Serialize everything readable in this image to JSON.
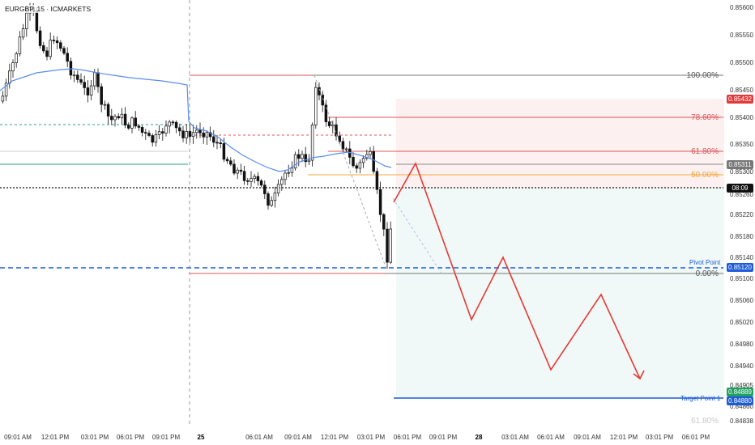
{
  "symbol_title": "EURGBP, 15 · ICMARKETS",
  "price_axis": {
    "ticks": [
      "0.85600",
      "0.85550",
      "0.85500",
      "0.85450",
      "0.85400",
      "0.85350",
      "0.85300",
      "0.85260",
      "0.85220",
      "0.85180",
      "0.85140",
      "0.85100",
      "0.85060",
      "0.85020",
      "0.84980",
      "0.84940",
      "0.84905",
      "0.84860",
      "0.84838"
    ],
    "tags": {
      "upper_red": "0.85432",
      "fifty": "0.85311",
      "countdown": "08:09",
      "pivot": "0.85120",
      "target": "0.84889",
      "target_sub": "0.84880"
    }
  },
  "time_axis": [
    "09:01 AM",
    "12:01 PM",
    "03:01 PM",
    "06:01 PM",
    "09:01 PM",
    "25",
    "06:01 AM",
    "09:01 AM",
    "12:01 PM",
    "03:01 PM",
    "06:01 PM",
    "09:01 PM",
    "28",
    "03:01 AM",
    "06:01 AM",
    "09:01 AM",
    "12:01 PM",
    "03:01 PM",
    "06:01 PM"
  ],
  "fib_levels": {
    "l100": "100.00%",
    "l786": "78.60%",
    "l618": "61.80%",
    "l50": "50.00%",
    "l0": "0.00%",
    "lneg": "61.80%"
  },
  "annotations": {
    "pivot": "Pivot Point",
    "target": "Target Point 1"
  },
  "colors": {
    "down_candle": "#111111",
    "up_candle": "#ffffff",
    "ma": "#5b8def",
    "projection": "#e53935",
    "fib_red": "#e05555",
    "fib_orange": "#f2a73b",
    "pivot_blue": "#1e5bd8",
    "target_blue": "#1e5bd8",
    "tag_red": "#e03a3a",
    "tag_gray": "#777777",
    "tag_black": "#111111",
    "tag_green": "#20a060"
  }
}
